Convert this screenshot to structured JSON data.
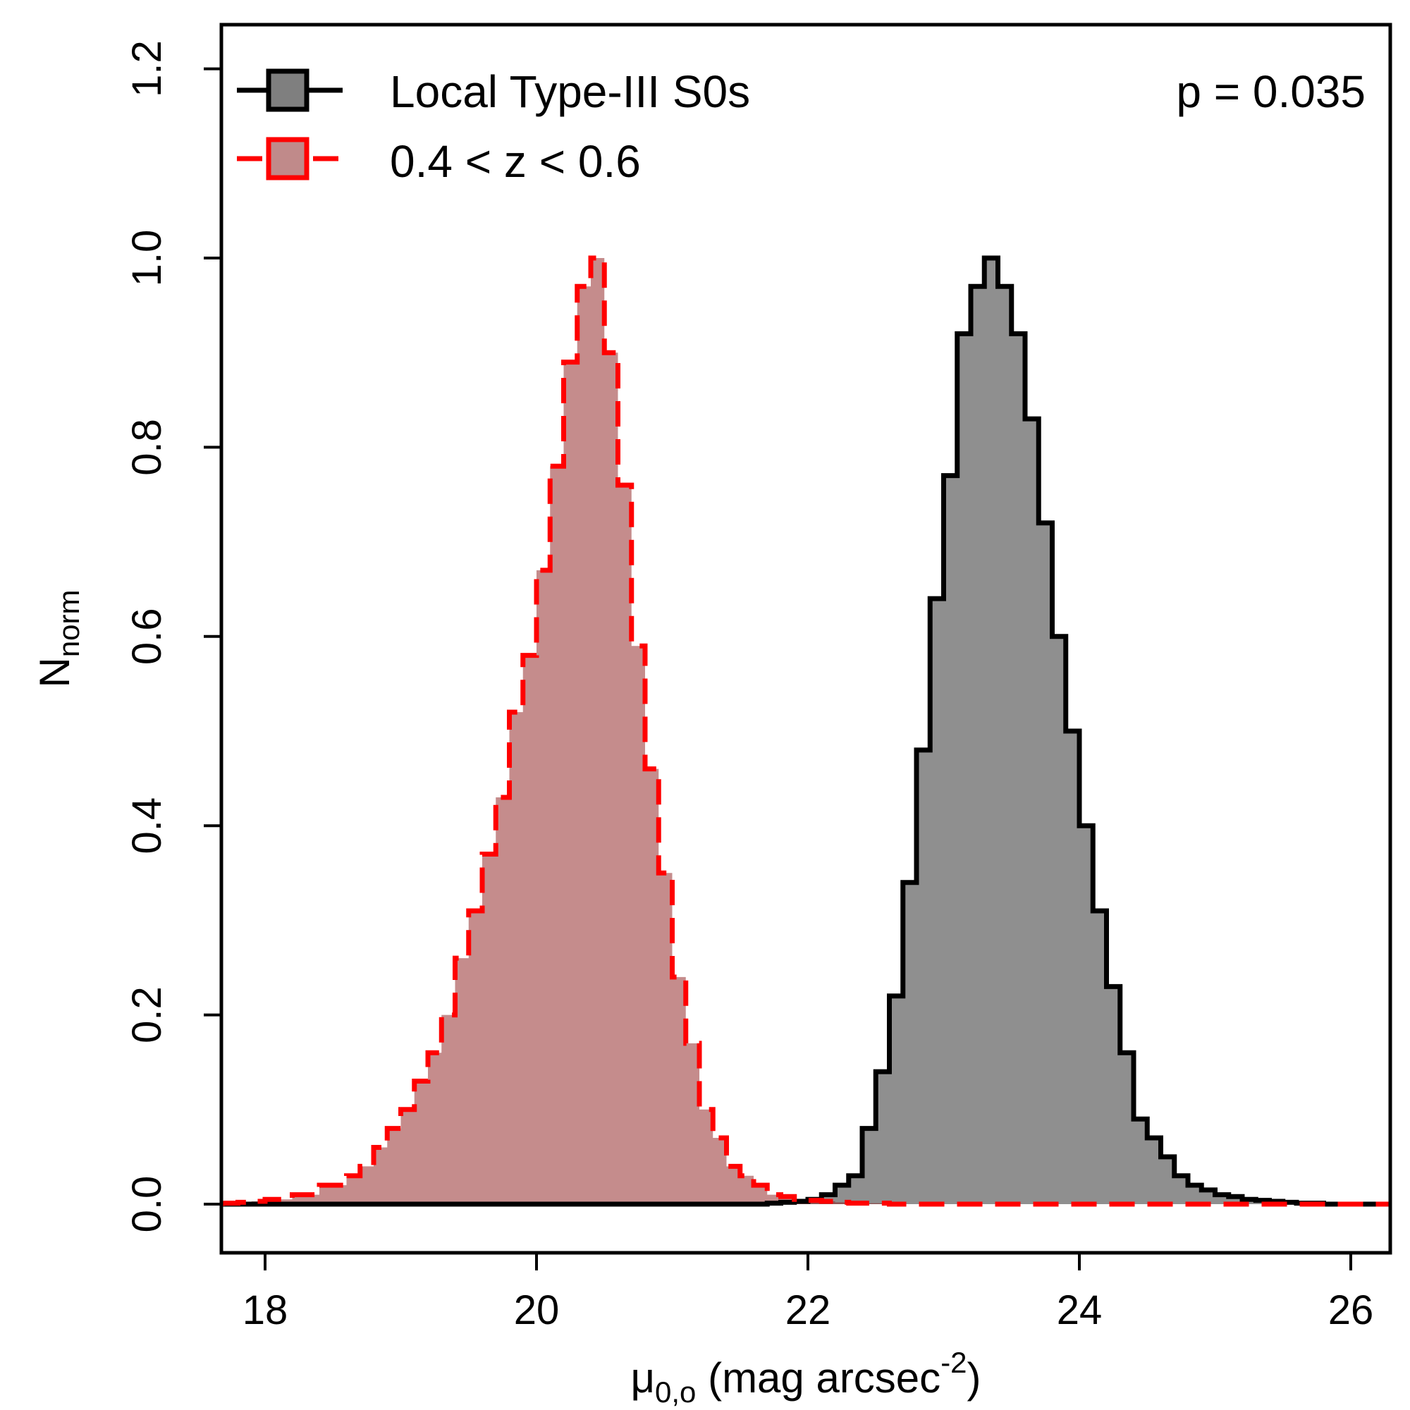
{
  "chart_data": {
    "type": "histogram",
    "xlabel": "μ0,o (mag arcsec-2)",
    "xlabel_parts": {
      "symbol": "μ",
      "sub": "0,o",
      "main": " (mag arcsec",
      "sup": "-2",
      "close": ")"
    },
    "ylabel": "Nnorm",
    "ylabel_parts": {
      "main": "N",
      "sub": "norm"
    },
    "xlim": [
      17.68,
      26.32
    ],
    "ylim": [
      0.0,
      1.25
    ],
    "xticks": [
      18,
      20,
      22,
      24,
      26
    ],
    "xtick_labels": [
      "18",
      "20",
      "22",
      "24",
      "26"
    ],
    "yticks": [
      0.0,
      0.2,
      0.4,
      0.6,
      0.8,
      1.0,
      1.2
    ],
    "ytick_labels": [
      "0.0",
      "0.2",
      "0.4",
      "0.6",
      "0.8",
      "1.0",
      "1.2"
    ],
    "bin_width": 0.1,
    "annotation": "p = 0.035",
    "legend_position": "top-left",
    "series": [
      {
        "name": "Local Type-III S0s",
        "line_color": "#000000",
        "fill_color": "#7f7f7f",
        "fill_opacity": 0.88,
        "dashed": false,
        "bin_start": 17.7,
        "counts": [
          0,
          0,
          0,
          0,
          0,
          0,
          0,
          0,
          0,
          0,
          0,
          0,
          0,
          0,
          0,
          0,
          0,
          0,
          0,
          0,
          0,
          0,
          0,
          0,
          0,
          0,
          0,
          0,
          0,
          0,
          0,
          0,
          0,
          0,
          0,
          0,
          0,
          0,
          0,
          0,
          0.001,
          0.002,
          0.003,
          0.005,
          0.01,
          0.02,
          0.03,
          0.08,
          0.14,
          0.22,
          0.34,
          0.48,
          0.64,
          0.77,
          0.92,
          0.97,
          1.0,
          0.97,
          0.92,
          0.83,
          0.72,
          0.6,
          0.5,
          0.4,
          0.31,
          0.23,
          0.16,
          0.09,
          0.07,
          0.05,
          0.03,
          0.02,
          0.015,
          0.01,
          0.008,
          0.005,
          0.004,
          0.003,
          0.002,
          0.001,
          0.001,
          0,
          0,
          0,
          0,
          0,
          0,
          0
        ]
      },
      {
        "name": "0.4 < z < 0.6",
        "line_color": "#ff0000",
        "fill_color": "#8b1a1a",
        "fill_opacity": 0.5,
        "dashed": true,
        "bin_start": 17.7,
        "counts": [
          0.001,
          0.002,
          0.003,
          0.005,
          0.005,
          0.01,
          0.01,
          0.02,
          0.02,
          0.03,
          0.04,
          0.06,
          0.08,
          0.1,
          0.13,
          0.16,
          0.2,
          0.26,
          0.31,
          0.37,
          0.43,
          0.52,
          0.58,
          0.67,
          0.78,
          0.89,
          0.97,
          1.0,
          0.9,
          0.76,
          0.59,
          0.46,
          0.35,
          0.24,
          0.17,
          0.1,
          0.07,
          0.04,
          0.03,
          0.02,
          0.01,
          0.008,
          0.005,
          0.004,
          0.003,
          0.002,
          0.001,
          0.001,
          0.001,
          0,
          0,
          0,
          0,
          0,
          0,
          0,
          0,
          0,
          0,
          0,
          0,
          0,
          0,
          0,
          0,
          0,
          0,
          0,
          0,
          0,
          0,
          0,
          0,
          0,
          0,
          0,
          0,
          0,
          0,
          0,
          0,
          0,
          0,
          0,
          0,
          0,
          0
        ]
      }
    ]
  }
}
